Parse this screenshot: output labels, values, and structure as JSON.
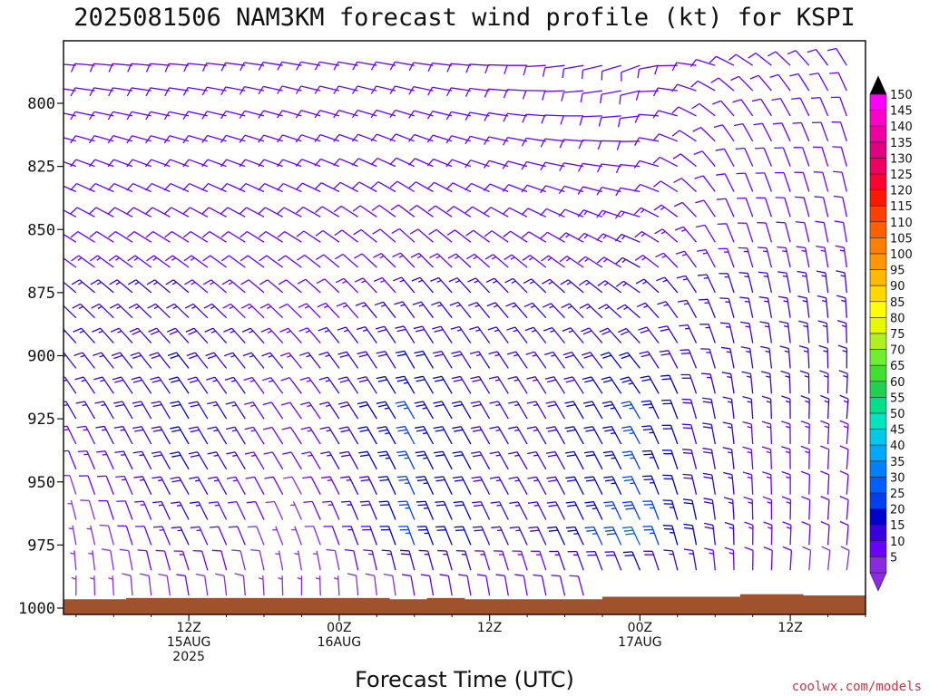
{
  "page": {
    "credit": "coolwx.com/models",
    "credit_color": "#cc3344"
  },
  "chart_data": {
    "type": "wind-barb-profile",
    "title": "2025081506 NAM3KM forecast wind profile (kt) for KSPI",
    "xlabel": "Forecast Time (UTC)",
    "ylabel": "",
    "y_axis": {
      "unit": "hPa",
      "range": [
        1000,
        780
      ],
      "ticks": [
        "800",
        "825",
        "850",
        "875",
        "900",
        "925",
        "950",
        "975",
        "1000"
      ]
    },
    "x_axis": {
      "range_hours": [
        -4,
        60
      ],
      "ticks": [
        {
          "hour": 6,
          "line1": "12Z",
          "line2": "15AUG",
          "line3": "2025"
        },
        {
          "hour": 18,
          "line1": "00Z",
          "line2": "16AUG",
          "line3": ""
        },
        {
          "hour": 30,
          "line1": "12Z",
          "line2": "",
          "line3": ""
        },
        {
          "hour": 42,
          "line1": "00Z",
          "line2": "17AUG",
          "line3": ""
        },
        {
          "hour": 54,
          "line1": "12Z",
          "line2": "",
          "line3": ""
        }
      ]
    },
    "levels_hpa": [
      785,
      795,
      805,
      815,
      825,
      835,
      845,
      855,
      865,
      875,
      885,
      895,
      905,
      915,
      925,
      935,
      945,
      955,
      965,
      975,
      985,
      995
    ],
    "barb_times_hours": [
      -3,
      -1.5,
      0,
      1.5,
      3,
      4.5,
      6,
      7.5,
      9,
      10.5,
      12,
      13.5,
      15,
      16.5,
      18,
      19.5,
      21,
      22.5,
      24,
      25.5,
      27,
      28.5,
      30,
      31.5,
      33,
      34.5,
      36,
      37.5,
      39,
      40.5,
      42,
      43.5,
      45,
      46.5,
      48,
      49.5,
      51,
      52.5,
      54,
      55.5,
      57,
      58.5
    ],
    "wind_keyframes": [
      {
        "hour": -3,
        "levels": [
          [
            785,
            275,
            10
          ],
          [
            800,
            280,
            10
          ],
          [
            825,
            290,
            10
          ],
          [
            850,
            300,
            10
          ],
          [
            875,
            310,
            15
          ],
          [
            900,
            320,
            15
          ],
          [
            925,
            330,
            15
          ],
          [
            950,
            340,
            10
          ],
          [
            975,
            350,
            5
          ],
          [
            995,
            0,
            5
          ]
        ]
      },
      {
        "hour": 6,
        "levels": [
          [
            785,
            275,
            10
          ],
          [
            800,
            280,
            10
          ],
          [
            825,
            290,
            10
          ],
          [
            850,
            300,
            10
          ],
          [
            875,
            310,
            15
          ],
          [
            900,
            320,
            20
          ],
          [
            925,
            330,
            20
          ],
          [
            950,
            330,
            20
          ],
          [
            975,
            335,
            15
          ],
          [
            995,
            350,
            10
          ]
        ]
      },
      {
        "hour": 15,
        "levels": [
          [
            785,
            280,
            10
          ],
          [
            800,
            285,
            10
          ],
          [
            825,
            290,
            10
          ],
          [
            850,
            300,
            10
          ],
          [
            875,
            310,
            10
          ],
          [
            900,
            320,
            15
          ],
          [
            925,
            325,
            10
          ],
          [
            950,
            330,
            10
          ],
          [
            975,
            340,
            5
          ],
          [
            995,
            0,
            5
          ]
        ]
      },
      {
        "hour": 24,
        "levels": [
          [
            785,
            280,
            10
          ],
          [
            800,
            285,
            10
          ],
          [
            825,
            295,
            10
          ],
          [
            850,
            310,
            10
          ],
          [
            875,
            320,
            15
          ],
          [
            900,
            330,
            20
          ],
          [
            925,
            330,
            25
          ],
          [
            950,
            335,
            25
          ],
          [
            975,
            340,
            25
          ],
          [
            995,
            350,
            10
          ]
        ]
      },
      {
        "hour": 33,
        "levels": [
          [
            785,
            270,
            10
          ],
          [
            800,
            275,
            10
          ],
          [
            825,
            285,
            10
          ],
          [
            850,
            300,
            10
          ],
          [
            875,
            315,
            15
          ],
          [
            900,
            325,
            15
          ],
          [
            925,
            330,
            15
          ],
          [
            950,
            330,
            15
          ],
          [
            975,
            335,
            15
          ],
          [
            995,
            350,
            10
          ]
        ]
      },
      {
        "hour": 42,
        "levels": [
          [
            785,
            250,
            10
          ],
          [
            800,
            260,
            10
          ],
          [
            825,
            275,
            10
          ],
          [
            850,
            290,
            15
          ],
          [
            875,
            305,
            15
          ],
          [
            900,
            320,
            20
          ],
          [
            925,
            330,
            25
          ],
          [
            950,
            335,
            25
          ],
          [
            975,
            335,
            30
          ],
          [
            995,
            340,
            10
          ]
        ]
      },
      {
        "hour": 50,
        "levels": [
          [
            785,
            300,
            10
          ],
          [
            800,
            320,
            10
          ],
          [
            825,
            335,
            10
          ],
          [
            850,
            340,
            10
          ],
          [
            875,
            345,
            15
          ],
          [
            900,
            350,
            15
          ],
          [
            925,
            355,
            15
          ],
          [
            950,
            355,
            15
          ],
          [
            975,
            0,
            15
          ],
          [
            995,
            0,
            10
          ]
        ]
      },
      {
        "hour": 59,
        "levels": [
          [
            785,
            330,
            10
          ],
          [
            800,
            340,
            10
          ],
          [
            825,
            345,
            10
          ],
          [
            850,
            350,
            10
          ],
          [
            875,
            355,
            15
          ],
          [
            900,
            0,
            15
          ],
          [
            925,
            5,
            15
          ],
          [
            950,
            5,
            10
          ],
          [
            975,
            5,
            10
          ],
          [
            995,
            10,
            5
          ]
        ]
      }
    ],
    "surface_pressure": [
      {
        "hour": -4,
        "hpa": 996.5
      },
      {
        "hour": 1,
        "hpa": 996.0
      },
      {
        "hour": 12,
        "hpa": 996.0
      },
      {
        "hour": 17,
        "hpa": 996.0
      },
      {
        "hour": 22,
        "hpa": 996.5
      },
      {
        "hour": 25,
        "hpa": 996.0
      },
      {
        "hour": 28,
        "hpa": 996.5
      },
      {
        "hour": 31,
        "hpa": 996.5
      },
      {
        "hour": 35,
        "hpa": 996.5
      },
      {
        "hour": 39,
        "hpa": 995.5
      },
      {
        "hour": 44,
        "hpa": 995.5
      },
      {
        "hour": 50,
        "hpa": 994.5
      },
      {
        "hour": 55,
        "hpa": 995.0
      },
      {
        "hour": 60,
        "hpa": 994.5
      }
    ],
    "terrain_color": "#a0522d",
    "colorbar": {
      "labels": [
        "5",
        "10",
        "15",
        "20",
        "25",
        "30",
        "35",
        "40",
        "45",
        "50",
        "55",
        "60",
        "65",
        "70",
        "75",
        "80",
        "85",
        "90",
        "95",
        "100",
        "105",
        "110",
        "115",
        "120",
        "125",
        "130",
        "135",
        "140",
        "145",
        "150"
      ],
      "colors": [
        "#8a2be2",
        "#6a00ff",
        "#3c00e0",
        "#0000cc",
        "#0040ee",
        "#0060ff",
        "#0080ff",
        "#00a8ff",
        "#00c8e8",
        "#00e5c0",
        "#00e08a",
        "#20d050",
        "#40e030",
        "#70ee30",
        "#b0f020",
        "#e8f800",
        "#ffff00",
        "#ffd800",
        "#ffb800",
        "#ff9800",
        "#ff8000",
        "#ff6000",
        "#ff4000",
        "#ff1800",
        "#ff0030",
        "#ee0060",
        "#e00080",
        "#f000a0",
        "#ff00c8",
        "#ff00ff"
      ],
      "top_arrow_color": "#000000",
      "bottom_arrow_color": "#8a2be2"
    }
  }
}
